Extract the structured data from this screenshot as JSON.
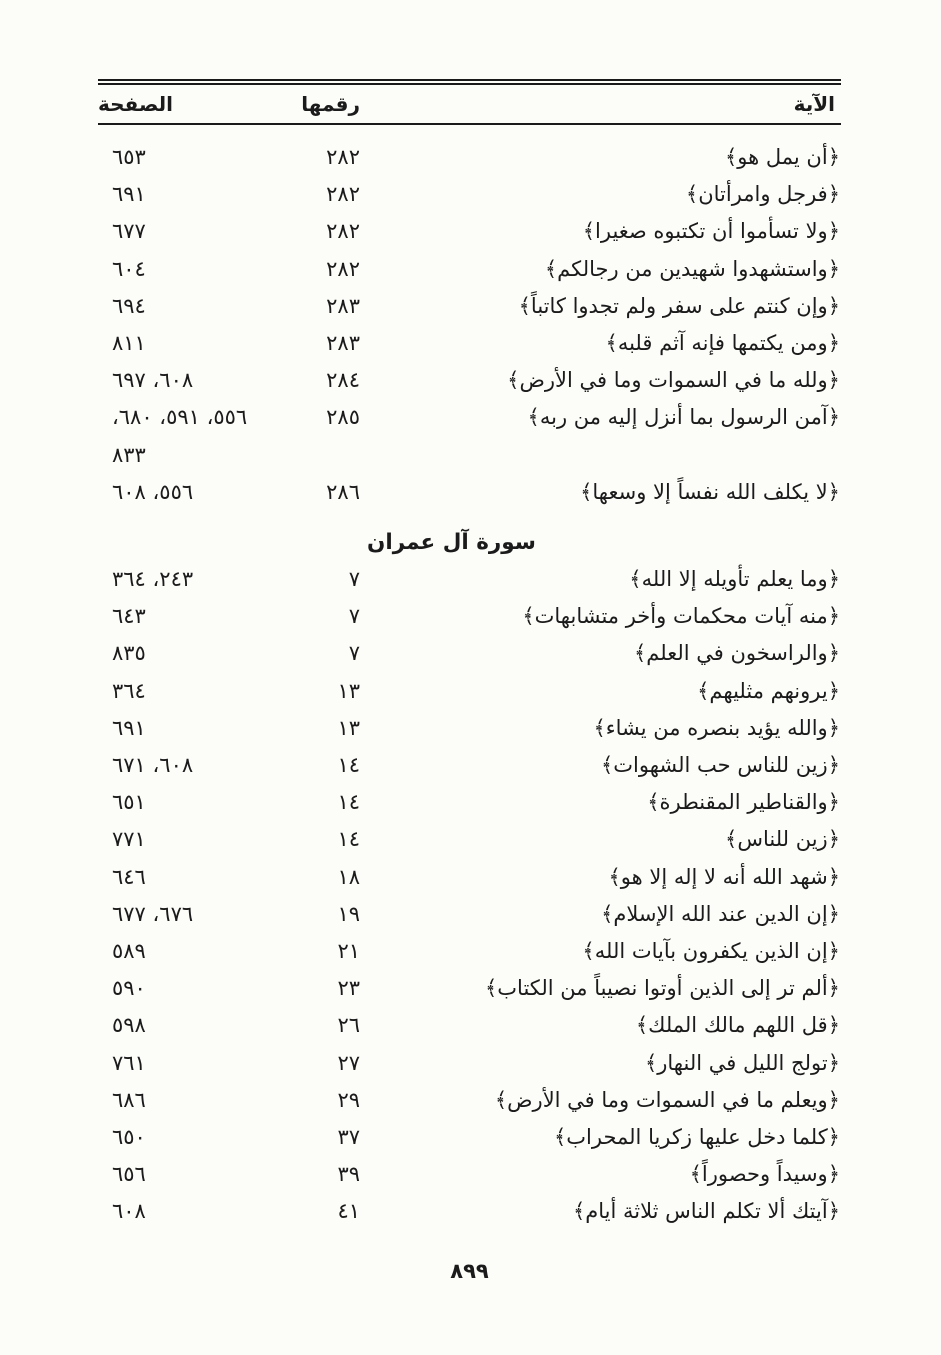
{
  "document": {
    "columns": {
      "verse": "الآية",
      "number": "رقمها",
      "page": "الصفحة"
    },
    "footer_page_number": "٨٩٩"
  },
  "sections": [
    {
      "heading": "",
      "rows": [
        {
          "verse": "﴿أن يمل هو﴾",
          "number": "٢٨٢",
          "pages": "٦٥٣"
        },
        {
          "verse": "﴿فرجل وامرأتان﴾",
          "number": "٢٨٢",
          "pages": "٦٩١"
        },
        {
          "verse": "﴿ولا تسأموا أن تكتبوه صغيرا﴾",
          "number": "٢٨٢",
          "pages": "٦٧٧"
        },
        {
          "verse": "﴿واستشهدوا شهيدين من رجالكم﴾",
          "number": "٢٨٢",
          "pages": "٦٠٤"
        },
        {
          "verse": "﴿وإن كنتم على سفر ولم تجدوا كاتباً﴾",
          "number": "٢٨٣",
          "pages": "٦٩٤"
        },
        {
          "verse": "﴿ومن يكتمها فإنه آثم قلبه﴾",
          "number": "٢٨٣",
          "pages": "٨١١"
        },
        {
          "verse": "﴿ولله ما في السموات وما في الأرض﴾",
          "number": "٢٨٤",
          "pages": "٦٠٨، ٦٩٧"
        },
        {
          "verse": "﴿آمن الرسول بما أنزل إليه من ربه﴾",
          "number": "٢٨٥",
          "pages": "٥٥٦، ٥٩١، ٦٨٠، ٨٣٣"
        },
        {
          "verse": "﴿لا يكلف الله نفساً إلا وسعها﴾",
          "number": "٢٨٦",
          "pages": "٥٥٦، ٦٠٨"
        }
      ]
    },
    {
      "heading": "سورة آل عمران",
      "rows": [
        {
          "verse": "﴿وما يعلم تأويله إلا الله﴾",
          "number": "٧",
          "pages": "٢٤٣، ٣٦٤"
        },
        {
          "verse": "﴿منه آيات محكمات وأخر متشابهات﴾",
          "number": "٧",
          "pages": "٦٤٣"
        },
        {
          "verse": "﴿والراسخون في العلم﴾",
          "number": "٧",
          "pages": "٨٣٥"
        },
        {
          "verse": "﴿يرونهم مثليهم﴾",
          "number": "١٣",
          "pages": "٣٦٤"
        },
        {
          "verse": "﴿والله يؤيد بنصره من يشاء﴾",
          "number": "١٣",
          "pages": "٦٩١"
        },
        {
          "verse": "﴿زين للناس حب الشهوات﴾",
          "number": "١٤",
          "pages": "٦٠٨، ٦٧١"
        },
        {
          "verse": "﴿والقناطير المقنطرة﴾",
          "number": "١٤",
          "pages": "٦٥١"
        },
        {
          "verse": "﴿زين للناس﴾",
          "number": "١٤",
          "pages": "٧٧١"
        },
        {
          "verse": "﴿شهد الله أنه لا إله إلا هو﴾",
          "number": "١٨",
          "pages": "٦٤٦"
        },
        {
          "verse": "﴿إن الدين عند الله الإسلام﴾",
          "number": "١٩",
          "pages": "٦٧٦، ٦٧٧"
        },
        {
          "verse": "﴿إن الذين يكفرون بآيات الله﴾",
          "number": "٢١",
          "pages": "٥٨٩"
        },
        {
          "verse": "﴿ألم تر إلى الذين أوتوا نصيباً من الكتاب﴾",
          "number": "٢٣",
          "pages": "٥٩٠"
        },
        {
          "verse": "﴿قل اللهم مالك الملك﴾",
          "number": "٢٦",
          "pages": "٥٩٨"
        },
        {
          "verse": "﴿تولج الليل في النهار﴾",
          "number": "٢٧",
          "pages": "٧٦١"
        },
        {
          "verse": "﴿ويعلم ما في السموات وما في الأرض﴾",
          "number": "٢٩",
          "pages": "٦٨٦"
        },
        {
          "verse": "﴿كلما دخل عليها زكريا المحراب﴾",
          "number": "٣٧",
          "pages": "٦٥٠"
        },
        {
          "verse": "﴿وسيداً وحصوراً﴾",
          "number": "٣٩",
          "pages": "٦٥٦"
        },
        {
          "verse": "﴿آيتك ألا تكلم الناس ثلاثة أيام﴾",
          "number": "٤١",
          "pages": "٦٠٨"
        }
      ]
    }
  ]
}
